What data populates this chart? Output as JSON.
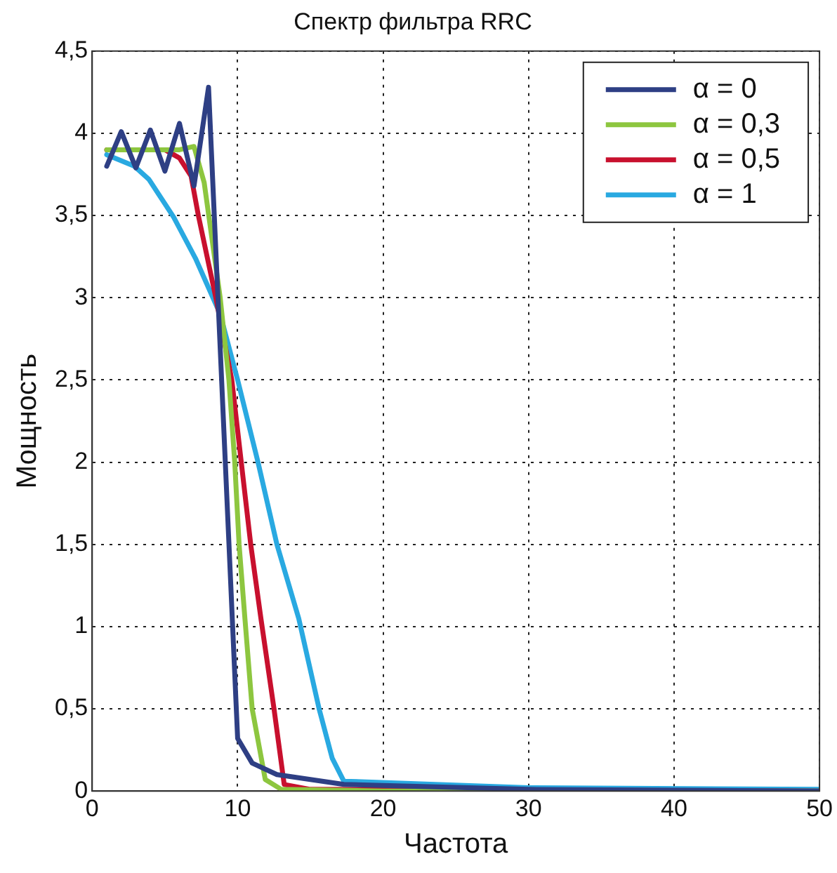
{
  "chart_data": {
    "type": "line",
    "title": "Спектр фильтра RRC",
    "xlabel": "Частота",
    "ylabel": "Мощность",
    "xlim": [
      0,
      50
    ],
    "xticks": [
      0,
      10,
      20,
      30,
      40,
      50
    ],
    "ylim": [
      0,
      4.5
    ],
    "yticks": [
      0,
      {
        "value": 0.5,
        "label": "0,5"
      },
      1,
      {
        "value": 1.5,
        "label": "1,5"
      },
      2,
      {
        "value": 2.5,
        "label": "2,5"
      },
      3,
      {
        "value": 3.5,
        "label": "3,5"
      },
      4,
      {
        "value": 4.5,
        "label": "4,5"
      }
    ],
    "grid": true,
    "legend": "top right",
    "marker": "none",
    "line_style": "solid",
    "series": [
      {
        "name": "α = 0",
        "color": "#2e3f84",
        "x": [
          1,
          2,
          3,
          4,
          5,
          6,
          7,
          8,
          9,
          10,
          11,
          12.7,
          17.3,
          30,
          50
        ],
        "values": [
          3.8,
          4.01,
          3.79,
          4.02,
          3.77,
          4.06,
          3.68,
          4.28,
          2.3,
          0.32,
          0.17,
          0.1,
          0.04,
          0.01,
          0
        ]
      },
      {
        "name": "α = 0,3",
        "color": "#8dc63f",
        "x": [
          1,
          3,
          5,
          6,
          7,
          7.7,
          8.8,
          9.4,
          9.8,
          10.1,
          10.5,
          11,
          11.9,
          13,
          20,
          50
        ],
        "values": [
          3.9,
          3.9,
          3.9,
          3.9,
          3.92,
          3.7,
          3,
          2.5,
          2,
          1.5,
          1.05,
          0.5,
          0.07,
          0.01,
          0,
          0
        ]
      },
      {
        "name": "α = 0,5",
        "color": "#c8102e",
        "x": [
          1,
          3,
          5,
          6,
          6.8,
          7.3,
          8.5,
          9.6,
          10.25,
          10.9,
          11.6,
          12.5,
          13.2,
          15,
          50
        ],
        "values": [
          3.9,
          3.9,
          3.9,
          3.85,
          3.74,
          3.5,
          3,
          2.5,
          2,
          1.5,
          1.05,
          0.5,
          0.04,
          0.01,
          0
        ]
      },
      {
        "name": "α = 1",
        "color": "#29a9e1",
        "x": [
          1,
          2.9,
          3.9,
          5.6,
          7.1,
          8.8,
          10,
          11.4,
          12.7,
          14.2,
          15.6,
          16.5,
          17.3,
          30,
          50
        ],
        "values": [
          3.87,
          3.8,
          3.72,
          3.49,
          3.24,
          2.9,
          2.5,
          2,
          1.5,
          1.05,
          0.5,
          0.2,
          0.06,
          0.02,
          0.01
        ]
      }
    ]
  }
}
